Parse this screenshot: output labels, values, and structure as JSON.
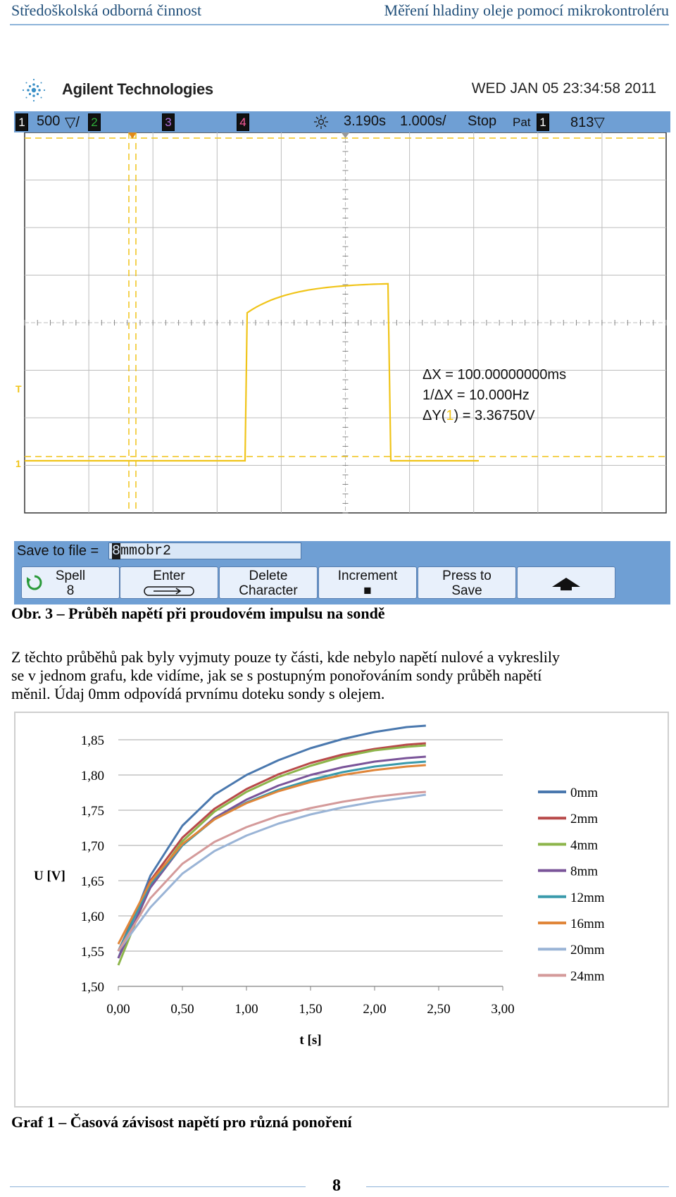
{
  "header": {
    "left": "Středoškolská odborná činnost",
    "right": "Měření hladiny oleje pomocí mikrokontroléru"
  },
  "scope": {
    "brand": "Agilent Technologies",
    "datetime": "WED JAN 05 23:34:58 2011",
    "status": {
      "ch1_label": "1",
      "ch1_scale": "500",
      "ch1_unit": "▽/",
      "ch2_label": "2",
      "ch3_label": "3",
      "ch4_label": "4",
      "time_pos": "3.190s",
      "time_div": "1.000s/",
      "run": "Stop",
      "trig_mode": "Pat",
      "trig_ch": "1",
      "trig_level": "813▽"
    },
    "colors": {
      "ch1": "#f0c419",
      "bar": "#6f9fd4",
      "ch2": "#2fae3a",
      "ch3": "#7a2ea8",
      "ch4": "#d6337a"
    },
    "markers": {
      "trigger": "T",
      "ground": "1"
    },
    "cursor": {
      "dx": "ΔX = 100.00000000ms",
      "inv_dx": "1/ΔX = 10.000Hz",
      "dy_prefix": "ΔY(",
      "dy_ch": "1",
      "dy_suffix": ") = 3.36750V"
    },
    "file": {
      "label": "Save to file =",
      "cursor_char": "8",
      "rest": "mmobr2"
    },
    "softkeys": [
      {
        "line1": "Spell",
        "line2": "8"
      },
      {
        "line1": "Enter",
        "line2": ""
      },
      {
        "line1": "Delete",
        "line2": "Character"
      },
      {
        "line1": "Increment",
        "line2": "■"
      },
      {
        "line1": "Press to",
        "line2": "Save"
      },
      {
        "line1": "",
        "line2": ""
      }
    ]
  },
  "figure_caption": "Obr. 3 – Průběh napětí při proudovém impulsu na sondě",
  "paragraph": {
    "line1": "Z těchto průběhů pak byly vyjmuty pouze ty části, kde nebylo napětí nulové a vykreslily",
    "line2": "se v jednom grafu, kde vidíme, jak se s postupným ponořováním sondy průběh napětí",
    "line3": "měnil. Údaj 0mm odpovídá prvnímu doteku sondy s olejem."
  },
  "chart_data": {
    "type": "line",
    "title": "",
    "xlabel": "t [s]",
    "ylabel": "U [V]",
    "xlim": [
      0,
      3
    ],
    "ylim": [
      1.5,
      1.85
    ],
    "xticks": [
      "0,00",
      "0,50",
      "1,00",
      "1,50",
      "2,00",
      "2,50",
      "3,00"
    ],
    "yticks": [
      "1,50",
      "1,55",
      "1,60",
      "1,65",
      "1,70",
      "1,75",
      "1,80",
      "1,85"
    ],
    "grid": "horizontal",
    "legend_position": "right",
    "series": [
      {
        "name": "0mm",
        "color": "#4a78ae",
        "start": 1.54,
        "end": 1.87,
        "x": [
          0,
          0.25,
          0.5,
          0.75,
          1.0,
          1.25,
          1.5,
          1.75,
          2.0,
          2.25,
          2.4
        ],
        "values": [
          1.54,
          1.657,
          1.728,
          1.772,
          1.8,
          1.821,
          1.838,
          1.851,
          1.861,
          1.868,
          1.87
        ]
      },
      {
        "name": "2mm",
        "color": "#b84a4a",
        "start": 1.55,
        "end": 1.845,
        "x": [
          0,
          0.25,
          0.5,
          0.75,
          1.0,
          1.25,
          1.5,
          1.75,
          2.0,
          2.25,
          2.4
        ],
        "values": [
          1.55,
          1.65,
          1.711,
          1.752,
          1.78,
          1.801,
          1.817,
          1.829,
          1.837,
          1.843,
          1.845
        ]
      },
      {
        "name": "4mm",
        "color": "#8db54b",
        "start": 1.53,
        "end": 1.842,
        "x": [
          0,
          0.25,
          0.5,
          0.75,
          1.0,
          1.25,
          1.5,
          1.75,
          2.0,
          2.25,
          2.4
        ],
        "values": [
          1.53,
          1.643,
          1.706,
          1.748,
          1.776,
          1.797,
          1.813,
          1.826,
          1.835,
          1.84,
          1.842
        ]
      },
      {
        "name": "8mm",
        "color": "#7a5499",
        "start": 1.54,
        "end": 1.826,
        "x": [
          0,
          0.25,
          0.5,
          0.75,
          1.0,
          1.25,
          1.5,
          1.75,
          2.0,
          2.25,
          2.4
        ],
        "values": [
          1.54,
          1.64,
          1.7,
          1.739,
          1.765,
          1.785,
          1.8,
          1.811,
          1.819,
          1.824,
          1.826
        ]
      },
      {
        "name": "12mm",
        "color": "#3a9aab",
        "start": 1.55,
        "end": 1.819,
        "x": [
          0,
          0.25,
          0.5,
          0.75,
          1.0,
          1.25,
          1.5,
          1.75,
          2.0,
          2.25,
          2.4
        ],
        "values": [
          1.55,
          1.645,
          1.7,
          1.737,
          1.761,
          1.779,
          1.793,
          1.804,
          1.812,
          1.817,
          1.819
        ]
      },
      {
        "name": "16mm",
        "color": "#e0863a",
        "start": 1.56,
        "end": 1.814,
        "x": [
          0,
          0.25,
          0.5,
          0.75,
          1.0,
          1.25,
          1.5,
          1.75,
          2.0,
          2.25,
          2.4
        ],
        "values": [
          1.56,
          1.648,
          1.702,
          1.737,
          1.76,
          1.777,
          1.79,
          1.8,
          1.807,
          1.812,
          1.814
        ]
      },
      {
        "name": "20mm",
        "color": "#9ab4d6",
        "start": 1.55,
        "end": 1.772,
        "x": [
          0,
          0.25,
          0.5,
          0.75,
          1.0,
          1.25,
          1.5,
          1.75,
          2.0,
          2.25,
          2.4
        ],
        "values": [
          1.55,
          1.612,
          1.66,
          1.692,
          1.714,
          1.731,
          1.744,
          1.754,
          1.762,
          1.768,
          1.772
        ]
      },
      {
        "name": "24mm",
        "color": "#d49a9a",
        "start": 1.55,
        "end": 1.776,
        "x": [
          0,
          0.25,
          0.5,
          0.75,
          1.0,
          1.25,
          1.5,
          1.75,
          2.0,
          2.25,
          2.4
        ],
        "values": [
          1.55,
          1.625,
          1.674,
          1.705,
          1.726,
          1.742,
          1.753,
          1.762,
          1.769,
          1.774,
          1.776
        ]
      }
    ]
  },
  "graph_caption": "Graf 1 – Časová závisost napětí pro různá ponoření",
  "page_number": "8"
}
